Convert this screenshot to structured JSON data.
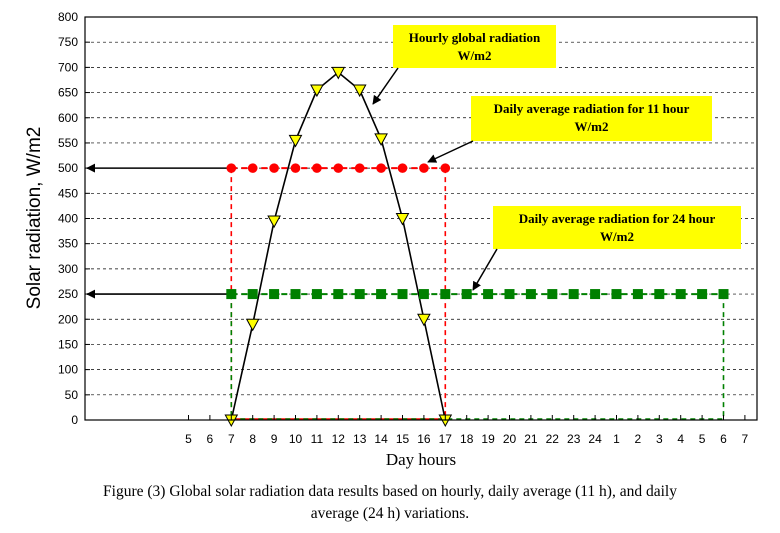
{
  "chart_data": {
    "type": "line",
    "ylabel": "Solar radiation,  W/m2",
    "xlabel": "Day hours",
    "ylim": [
      0,
      800
    ],
    "yticks": [
      0,
      50,
      100,
      150,
      200,
      250,
      300,
      350,
      400,
      450,
      500,
      550,
      600,
      650,
      700,
      750,
      800
    ],
    "xtick_labels": [
      "5",
      "6",
      "7",
      "8",
      "9",
      "10",
      "11",
      "12",
      "13",
      "14",
      "15",
      "16",
      "17",
      "18",
      "19",
      "20",
      "21",
      "22",
      "23",
      "24",
      "1",
      "2",
      "3",
      "4",
      "5",
      "6",
      "7"
    ],
    "grid": true,
    "series": [
      {
        "name": "Hourly global radiation W/m2",
        "color": "#000000",
        "marker_color": "#ffff00",
        "marker": "triangle-down",
        "x": [
          "7",
          "8",
          "9",
          "10",
          "11",
          "12",
          "13",
          "14",
          "15",
          "16",
          "17"
        ],
        "values": [
          0,
          190,
          395,
          555,
          655,
          690,
          655,
          558,
          400,
          200,
          0
        ]
      },
      {
        "name": "Daily average radiation for 11 hour W/m2",
        "color": "#ff0000",
        "marker": "circle",
        "x": [
          "7",
          "8",
          "9",
          "10",
          "11",
          "12",
          "13",
          "14",
          "15",
          "16",
          "17"
        ],
        "values": [
          500,
          500,
          500,
          500,
          500,
          500,
          500,
          500,
          500,
          500,
          500
        ]
      },
      {
        "name": "Daily average radiation for 24 hour W/m2",
        "color": "#008000",
        "marker": "square",
        "x": [
          "7",
          "8",
          "9",
          "10",
          "11",
          "12",
          "13",
          "14",
          "15",
          "16",
          "17",
          "18",
          "19",
          "20",
          "21",
          "22",
          "23",
          "24",
          "1",
          "2",
          "3",
          "4",
          "5",
          "6"
        ],
        "values": [
          250,
          250,
          250,
          250,
          250,
          250,
          250,
          250,
          250,
          250,
          250,
          250,
          250,
          250,
          250,
          250,
          250,
          250,
          250,
          250,
          250,
          250,
          250,
          250
        ]
      }
    ],
    "annotations": [
      {
        "lines": [
          "Hourly global radiation",
          "W/m2"
        ],
        "background": "#ffff00"
      },
      {
        "lines": [
          "Daily average radiation for 11 hour",
          "W/m2"
        ],
        "background": "#ffff00"
      },
      {
        "lines": [
          "Daily average radiation for 24 hour",
          "W/m2"
        ],
        "background": "#ffff00"
      }
    ]
  },
  "caption": {
    "line1": "Figure (3) Global solar radiation data results based on hourly, daily average (11 h), and daily",
    "line2": "average (24 h) variations."
  }
}
